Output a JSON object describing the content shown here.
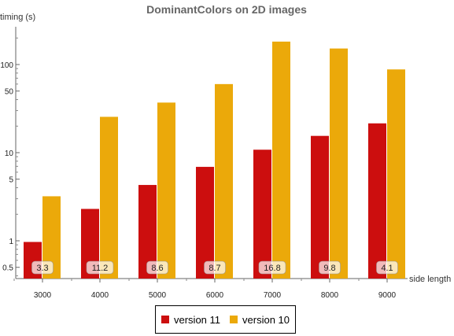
{
  "chart_data": {
    "type": "bar",
    "title": "DominantColors on 2D images",
    "xlabel": "side length",
    "ylabel": "timing (s)",
    "yscale": "log",
    "ylim": [
      0.3,
      300
    ],
    "y_ticks": [
      {
        "v": 0.5,
        "label": "0.5"
      },
      {
        "v": 1,
        "label": "1"
      },
      {
        "v": 5,
        "label": "5"
      },
      {
        "v": 10,
        "label": "10"
      },
      {
        "v": 50,
        "label": "50"
      },
      {
        "v": 100,
        "label": "100"
      }
    ],
    "categories": [
      "3000",
      "4000",
      "5000",
      "6000",
      "7000",
      "8000",
      "9000"
    ],
    "series": [
      {
        "name": "version 11",
        "color": "#cc0e0e",
        "values": [
          0.97,
          2.3,
          4.3,
          6.9,
          10.8,
          15.5,
          21.5
        ]
      },
      {
        "name": "version 10",
        "color": "#eba90a",
        "values": [
          3.2,
          25.5,
          37,
          60,
          182,
          152,
          88
        ]
      }
    ],
    "data_labels": [
      "3.3",
      "11.2",
      "8.6",
      "8.7",
      "16.8",
      "9.8",
      "4.1"
    ],
    "grid": false,
    "legend_position": "bottom"
  }
}
